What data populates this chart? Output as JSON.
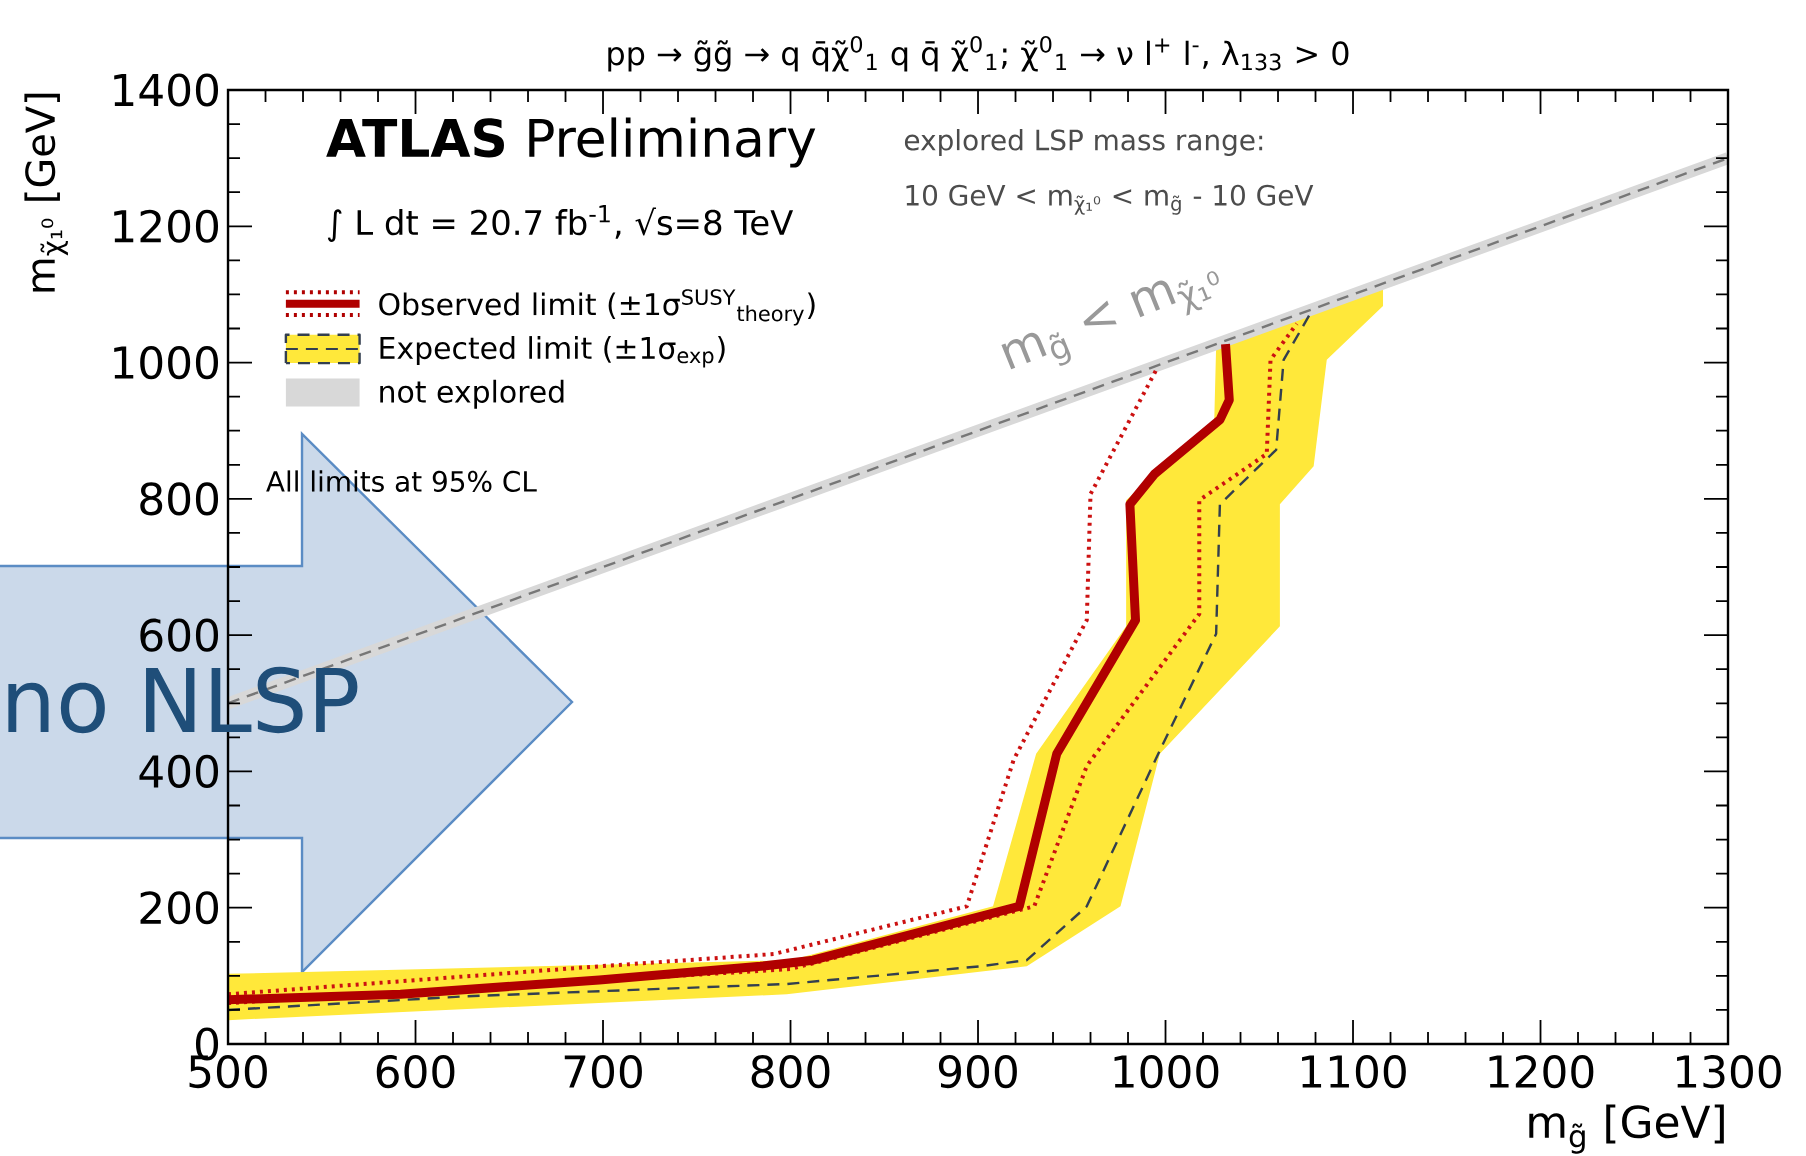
{
  "chart_data": {
    "type": "line",
    "title": "pp → g̃g̃ → q q̄χ̃$^{0}$$_{1}$ q q̄ χ̃$^{0}$$_{1}$;    χ̃$^{0}$$_{1}$ → ν l$^{+}$ l$^{-}$, λ$_{133}$ > 0",
    "xlabel": "m$_{g̃}$ [GeV]",
    "ylabel": "m$_{χ̃₁⁰}$ [GeV]",
    "xlim": [
      500,
      1300
    ],
    "ylim": [
      0,
      1400
    ],
    "xticks": [
      500,
      600,
      700,
      800,
      900,
      1000,
      1100,
      1200,
      1300
    ],
    "yticks": [
      0,
      200,
      400,
      600,
      800,
      1000,
      1200,
      1400
    ],
    "grid": false,
    "legend": "top left",
    "series": [
      {
        "type": "area",
        "color": "#ffe83a",
        "x": [
          500,
          800,
          908,
          931,
          979,
          979,
          1026,
          1027,
          1116,
          1116,
          1086,
          1079,
          1061,
          1061,
          997,
          976,
          926,
          798,
          500
        ],
        "values": [
          103,
          123,
          202,
          426,
          613,
          798,
          916,
          1024,
          1112,
          1083,
          1004,
          848,
          792,
          613,
          426,
          202,
          114,
          73,
          35
        ]
      },
      {
        "color": "#d8d8d8",
        "name": "not explored",
        "line_style": "solid",
        "x": [
          500,
          1300
        ],
        "values": [
          500,
          1300
        ]
      },
      {
        "color": "#777777",
        "line_style": "dashed",
        "x": [
          500,
          1300
        ],
        "values": [
          500,
          1300
        ]
      },
      {
        "color": "#333f4f",
        "name": "Expected limit (±1σ$_{exp}$)",
        "line_style": "dashed",
        "x": [
          500,
          627,
          798,
          901,
          926,
          958,
          997,
          1027,
          1029,
          1059,
          1063,
          1077
        ],
        "values": [
          50,
          70,
          88,
          114,
          123,
          202,
          431,
          602,
          792,
          872,
          1004,
          1071
        ]
      },
      {
        "color": "#cc1111",
        "line_style": "dotted",
        "x": [
          500,
          698,
          791,
          894,
          919,
          958,
          960,
          995
        ],
        "values": [
          73,
          114,
          132,
          202,
          417,
          622,
          807,
          989
        ]
      },
      {
        "color": "#cc1111",
        "line_style": "dotted",
        "x": [
          500,
          800,
          930,
          958,
          1018,
          1018,
          1054,
          1056,
          1070
        ],
        "values": [
          60,
          110,
          202,
          408,
          631,
          798,
          866,
          1004,
          1057
        ]
      },
      {
        "color": "#b00000",
        "name": "Observed limit (±1σ$^{SUSY}$$_{theory}$)",
        "line_style": "solid",
        "x": [
          500,
          592,
          698,
          784,
          812,
          922,
          942,
          984,
          981,
          994,
          1029,
          1034,
          1032
        ],
        "values": [
          65,
          73,
          94,
          114,
          123,
          202,
          426,
          622,
          792,
          836,
          916,
          945,
          1027
        ]
      }
    ],
    "annotations": [
      "**ATLAS** Preliminary",
      "∫ L dt = 20.7 fb$^{-1}$, √s=8 TeV",
      "explored LSP mass range:",
      "10 GeV < m$_{χ̃₁⁰}$ < m$_{g̃}$ - 10 GeV",
      "All limits at 95% CL",
      "m$_{g̃}$ < m$_{χ̃₁⁰}$",
      "no NLSP"
    ]
  }
}
